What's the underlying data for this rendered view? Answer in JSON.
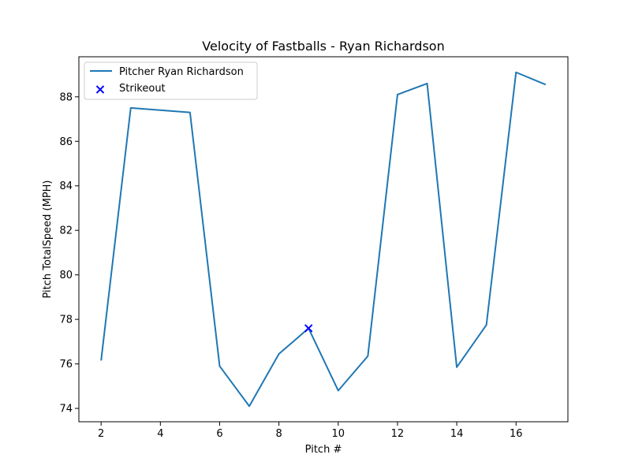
{
  "chart_data": {
    "type": "line",
    "title": "Velocity of Fastballs - Ryan Richardson",
    "xlabel": "Pitch #",
    "ylabel": "Pitch TotalSpeed (MPH)",
    "xlim": [
      1.25,
      17.75
    ],
    "ylim": [
      73.4,
      89.8
    ],
    "xticks": [
      2,
      4,
      6,
      8,
      10,
      12,
      14,
      16
    ],
    "yticks": [
      74,
      76,
      78,
      80,
      82,
      84,
      86,
      88
    ],
    "grid": false,
    "legend_position": "top-left",
    "series": [
      {
        "name": "Pitcher Ryan Richardson",
        "kind": "line",
        "color": "#1f77b4",
        "x": [
          2,
          3,
          5,
          6,
          7,
          8,
          9,
          10,
          11,
          12,
          13,
          14,
          15,
          16,
          17
        ],
        "y": [
          76.15,
          87.5,
          87.3,
          75.9,
          74.1,
          76.45,
          77.6,
          74.8,
          76.35,
          88.1,
          88.6,
          75.85,
          77.75,
          89.1,
          88.55
        ]
      },
      {
        "name": "Strikeout",
        "kind": "scatter",
        "marker": "x",
        "color": "#0000ff",
        "x": [
          9
        ],
        "y": [
          77.6
        ]
      }
    ]
  }
}
